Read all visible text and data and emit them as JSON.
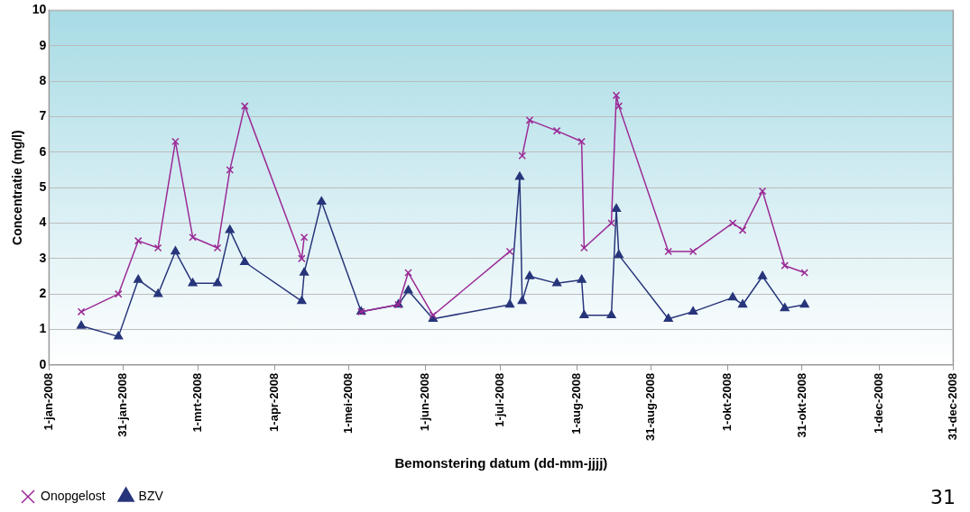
{
  "chart_data": {
    "type": "line",
    "xlabel": "Bemonstering datum (dd-mm-jjjj)",
    "ylabel": "Concentratie (mg/l)",
    "x": [
      "2008-01-14",
      "2008-01-29",
      "2008-02-06",
      "2008-02-14",
      "2008-02-21",
      "2008-02-28",
      "2008-03-09",
      "2008-03-14",
      "2008-03-20",
      "2008-04-12",
      "2008-04-13",
      "2008-04-20",
      "2008-05-06",
      "2008-05-21",
      "2008-05-25",
      "2008-06-04",
      "2008-07-05",
      "2008-07-09",
      "2008-07-10",
      "2008-07-13",
      "2008-07-24",
      "2008-08-03",
      "2008-08-04",
      "2008-08-15",
      "2008-08-17",
      "2008-08-18",
      "2008-09-07",
      "2008-09-17",
      "2008-10-03",
      "2008-10-07",
      "2008-10-15",
      "2008-10-24",
      "2008-11-01"
    ],
    "series": [
      {
        "name": "BZV",
        "color": "#27357a",
        "marker": "triangle",
        "values": [
          1.1,
          0.8,
          2.4,
          2.0,
          3.2,
          2.3,
          2.3,
          3.8,
          2.9,
          1.8,
          2.6,
          4.6,
          1.5,
          1.7,
          2.1,
          1.3,
          1.7,
          5.3,
          1.8,
          2.5,
          2.3,
          2.4,
          1.4,
          1.4,
          4.4,
          3.1,
          1.3,
          1.5,
          1.9,
          1.7,
          2.5,
          1.6,
          1.7
        ]
      },
      {
        "name": "Onopgelost",
        "color": "#9b2a96",
        "marker": "cross",
        "values": [
          1.5,
          2.0,
          3.5,
          3.3,
          6.3,
          3.6,
          3.3,
          5.5,
          7.3,
          3.0,
          3.6,
          null,
          1.5,
          1.7,
          2.6,
          1.4,
          3.2,
          null,
          5.9,
          6.9,
          6.6,
          6.3,
          3.3,
          4.0,
          7.6,
          7.3,
          3.2,
          3.2,
          4.0,
          3.8,
          4.9,
          2.8,
          2.6
        ]
      }
    ],
    "xlim": [
      "2008-01-01",
      "2008-12-31"
    ],
    "xticks": [
      {
        "value": "2008-01-01",
        "label": "1-jan-2008"
      },
      {
        "value": "2008-01-31",
        "label": "31-jan-2008"
      },
      {
        "value": "2008-03-01",
        "label": "1-mrt-2008"
      },
      {
        "value": "2008-04-01",
        "label": "1-apr-2008"
      },
      {
        "value": "2008-05-01",
        "label": "1-mei-2008"
      },
      {
        "value": "2008-06-01",
        "label": "1-jun-2008"
      },
      {
        "value": "2008-07-01",
        "label": "1-jul-2008"
      },
      {
        "value": "2008-08-01",
        "label": "1-aug-2008"
      },
      {
        "value": "2008-08-31",
        "label": "31-aug-2008"
      },
      {
        "value": "2008-10-01",
        "label": "1-okt-2008"
      },
      {
        "value": "2008-10-31",
        "label": "31-okt-2008"
      },
      {
        "value": "2008-12-01",
        "label": "1-dec-2008"
      },
      {
        "value": "2008-12-31",
        "label": "31-dec-2008"
      }
    ],
    "ylim": [
      0,
      10
    ],
    "yticks": [
      0,
      1,
      2,
      3,
      4,
      5,
      6,
      7,
      8,
      9,
      10
    ],
    "grid": "y",
    "legend": "bottom left",
    "line_style": "solid",
    "annotations": [
      "31"
    ]
  }
}
